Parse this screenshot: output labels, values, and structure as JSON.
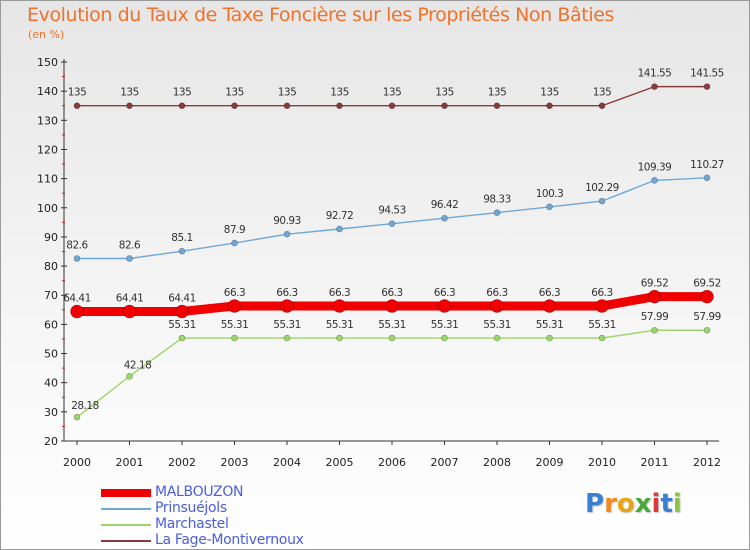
{
  "chart_data": {
    "type": "line",
    "title": "Evolution du Taux de Taxe Foncière sur les Propriétés Non Bâties",
    "ylabel": "(en %)",
    "xlabel": "",
    "categories": [
      "2000",
      "2001",
      "2002",
      "2003",
      "2004",
      "2005",
      "2006",
      "2007",
      "2008",
      "2009",
      "2010",
      "2011",
      "2012"
    ],
    "ylim": [
      20,
      150
    ],
    "yticks": [
      20,
      30,
      40,
      50,
      60,
      70,
      80,
      90,
      100,
      110,
      120,
      130,
      140,
      150
    ],
    "grid": false,
    "legend_position": "bottom-left",
    "series": [
      {
        "name": "MALBOUZON",
        "color": "#f00000",
        "values": [
          64.41,
          64.41,
          64.41,
          66.3,
          66.3,
          66.3,
          66.3,
          66.3,
          66.3,
          66.3,
          66.3,
          69.52,
          69.52
        ],
        "labels": [
          "64.41",
          "64.41",
          "64.41",
          "66.3",
          "66.3",
          "66.3",
          "66.3",
          "66.3",
          "66.3",
          "66.3",
          "66.3",
          "69.52",
          "69.52"
        ]
      },
      {
        "name": "Prinsuéjols",
        "color": "#6fa8d6",
        "values": [
          82.6,
          82.6,
          85.1,
          87.9,
          90.93,
          92.72,
          94.53,
          96.42,
          98.33,
          100.3,
          102.29,
          109.39,
          110.27
        ],
        "labels": [
          "82.6",
          "82.6",
          "85.1",
          "87.9",
          "90.93",
          "92.72",
          "94.53",
          "96.42",
          "98.33",
          "100.3",
          "102.29",
          "109.39",
          "110.27"
        ]
      },
      {
        "name": "Marchastel",
        "color": "#9bd66b",
        "values": [
          28.18,
          42.18,
          55.31,
          55.31,
          55.31,
          55.31,
          55.31,
          55.31,
          55.31,
          55.31,
          55.31,
          57.99,
          57.99
        ],
        "labels": [
          "28.18",
          "42.18",
          "55.31",
          "55.31",
          "55.31",
          "55.31",
          "55.31",
          "55.31",
          "55.31",
          "55.31",
          "55.31",
          "57.99",
          "57.99"
        ]
      },
      {
        "name": "La Fage-Montivernoux",
        "color": "#8b3a3a",
        "values": [
          135,
          135,
          135,
          135,
          135,
          135,
          135,
          135,
          135,
          135,
          135,
          141.55,
          141.55
        ],
        "labels": [
          "135",
          "135",
          "135",
          "135",
          "135",
          "135",
          "135",
          "135",
          "135",
          "135",
          "135",
          "141.55",
          "141.55"
        ]
      }
    ]
  },
  "legend": {
    "items": [
      {
        "label": "MALBOUZON",
        "color": "#f00000",
        "label_color": "#4a5ee0"
      },
      {
        "label": "Prinsuéjols",
        "color": "#6fa8d6",
        "label_color": "#4a5ee0"
      },
      {
        "label": "Marchastel",
        "color": "#9bd66b",
        "label_color": "#4a5ee0"
      },
      {
        "label": "La Fage-Montivernoux",
        "color": "#8b3a3a",
        "label_color": "#4a5ee0"
      }
    ]
  },
  "logo": {
    "letters": [
      {
        "ch": "P",
        "color": "#3a7fd0"
      },
      {
        "ch": "r",
        "color": "#f08a1c"
      },
      {
        "ch": "o",
        "color": "#e8a51a"
      },
      {
        "ch": "x",
        "color": "#4aa83a"
      },
      {
        "ch": "i",
        "color": "#d93a3a"
      },
      {
        "ch": "t",
        "color": "#3a7fd0"
      },
      {
        "ch": "i",
        "color": "#8cc63f"
      }
    ]
  }
}
